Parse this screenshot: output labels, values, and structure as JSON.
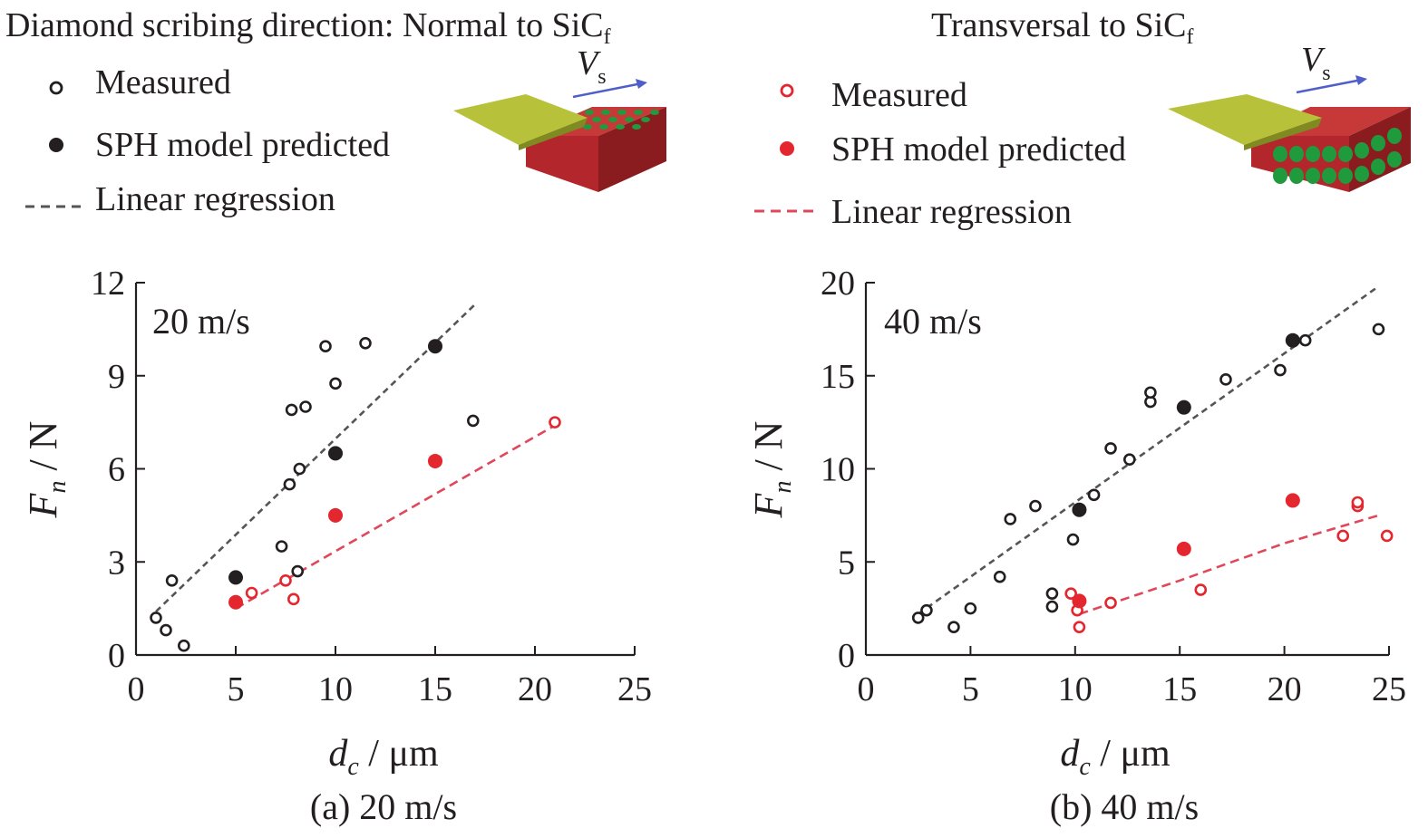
{
  "header": {
    "left_title": "Diamond scribing direction: Normal to SiC",
    "left_title_sub": "f",
    "right_title": "Transversal to SiC",
    "right_title_sub": "f"
  },
  "legend": {
    "measured": "Measured",
    "predicted": "SPH model predicted",
    "regression": "Linear regression"
  },
  "inset": {
    "velocity_symbol": "V",
    "velocity_sub": "s"
  },
  "colors": {
    "black_series": "#231f20",
    "red_series": "#e4262f",
    "grey_dash": "#555555",
    "red_dash": "#e0475a",
    "tool_green": "#b7c23a",
    "block_red": "#b3262b",
    "fiber_green": "#1f9a3c",
    "arrow_blue": "#4f5fc9"
  },
  "chart_data": [
    {
      "type": "scatter",
      "caption": "(a) 20 m/s",
      "annotation": "20 m/s",
      "xlabel_var": "d",
      "xlabel_sub": "c",
      "xlabel_unit": " / μm",
      "ylabel_var": "F",
      "ylabel_sub": "n",
      "ylabel_unit": " / N",
      "xlim": [
        0,
        25
      ],
      "ylim": [
        0,
        12
      ],
      "xticks": [
        0,
        5,
        10,
        15,
        20,
        25
      ],
      "yticks": [
        0,
        3,
        6,
        9,
        12
      ],
      "grid": false,
      "series": [
        {
          "name": "Measured",
          "group": "black",
          "marker": "open",
          "points": [
            [
              1.0,
              1.2
            ],
            [
              1.5,
              0.8
            ],
            [
              1.8,
              2.4
            ],
            [
              2.4,
              0.3
            ],
            [
              7.3,
              3.5
            ],
            [
              7.7,
              5.5
            ],
            [
              7.8,
              7.9
            ],
            [
              8.1,
              2.7
            ],
            [
              8.2,
              6.0
            ],
            [
              8.5,
              8.0
            ],
            [
              9.5,
              9.95
            ],
            [
              10.0,
              8.75
            ],
            [
              11.5,
              10.05
            ],
            [
              16.9,
              7.55
            ]
          ]
        },
        {
          "name": "SPH model predicted",
          "group": "black",
          "marker": "filled",
          "points": [
            [
              5.0,
              2.5
            ],
            [
              10.0,
              6.5
            ],
            [
              15.0,
              9.95
            ]
          ]
        },
        {
          "name": "Linear regression",
          "group": "black",
          "marker": "dash",
          "points": [
            [
              1.0,
              1.4
            ],
            [
              17.0,
              11.3
            ]
          ]
        },
        {
          "name": "Measured",
          "group": "red",
          "marker": "open",
          "points": [
            [
              5.8,
              2.0
            ],
            [
              7.5,
              2.4
            ],
            [
              7.9,
              1.8
            ],
            [
              21.0,
              7.5
            ]
          ]
        },
        {
          "name": "SPH model predicted",
          "group": "red",
          "marker": "filled",
          "points": [
            [
              5.0,
              1.7
            ],
            [
              10.0,
              4.5
            ],
            [
              15.0,
              6.25
            ]
          ]
        },
        {
          "name": "Linear regression",
          "group": "red",
          "marker": "dash",
          "points": [
            [
              5.0,
              1.5
            ],
            [
              21.0,
              7.4
            ]
          ]
        }
      ]
    },
    {
      "type": "scatter",
      "caption": "(b) 40 m/s",
      "annotation": "40 m/s",
      "xlabel_var": "d",
      "xlabel_sub": "c",
      "xlabel_unit": " / μm",
      "ylabel_var": "F",
      "ylabel_sub": "n",
      "ylabel_unit": " / N",
      "xlim": [
        0,
        25
      ],
      "ylim": [
        0,
        20
      ],
      "xticks": [
        0,
        5,
        10,
        15,
        20,
        25
      ],
      "yticks": [
        0,
        5,
        10,
        15,
        20
      ],
      "grid": false,
      "series": [
        {
          "name": "Measured",
          "group": "black",
          "marker": "open",
          "points": [
            [
              2.5,
              2.0
            ],
            [
              2.9,
              2.4
            ],
            [
              4.2,
              1.5
            ],
            [
              5.0,
              2.5
            ],
            [
              6.4,
              4.2
            ],
            [
              6.9,
              7.3
            ],
            [
              8.1,
              8.0
            ],
            [
              8.9,
              2.6
            ],
            [
              8.9,
              3.3
            ],
            [
              9.9,
              6.2
            ],
            [
              10.9,
              8.6
            ],
            [
              11.7,
              11.1
            ],
            [
              12.6,
              10.5
            ],
            [
              13.6,
              13.6
            ],
            [
              13.6,
              14.1
            ],
            [
              17.2,
              14.8
            ],
            [
              19.8,
              15.3
            ],
            [
              21.0,
              16.9
            ],
            [
              24.5,
              17.5
            ]
          ]
        },
        {
          "name": "SPH model predicted",
          "group": "black",
          "marker": "filled",
          "points": [
            [
              10.2,
              7.8
            ],
            [
              15.2,
              13.3
            ],
            [
              20.4,
              16.9
            ]
          ]
        },
        {
          "name": "Linear regression",
          "group": "black",
          "marker": "dash",
          "points": [
            [
              2.5,
              2.2
            ],
            [
              24.5,
              19.8
            ]
          ]
        },
        {
          "name": "Measured",
          "group": "red",
          "marker": "open",
          "points": [
            [
              9.8,
              3.3
            ],
            [
              10.1,
              2.4
            ],
            [
              10.2,
              1.5
            ],
            [
              11.7,
              2.8
            ],
            [
              16.0,
              3.5
            ],
            [
              22.8,
              6.4
            ],
            [
              23.5,
              8.0
            ],
            [
              23.5,
              8.2
            ],
            [
              24.9,
              6.4
            ]
          ]
        },
        {
          "name": "SPH model predicted",
          "group": "red",
          "marker": "filled",
          "points": [
            [
              10.2,
              2.9
            ],
            [
              15.2,
              5.7
            ],
            [
              20.4,
              8.3
            ]
          ]
        },
        {
          "name": "Linear regression",
          "group": "red",
          "marker": "dash",
          "points": [
            [
              10.2,
              2.2
            ],
            [
              15.0,
              4.0
            ],
            [
              20.0,
              6.0
            ],
            [
              24.5,
              7.5
            ]
          ]
        }
      ]
    }
  ]
}
